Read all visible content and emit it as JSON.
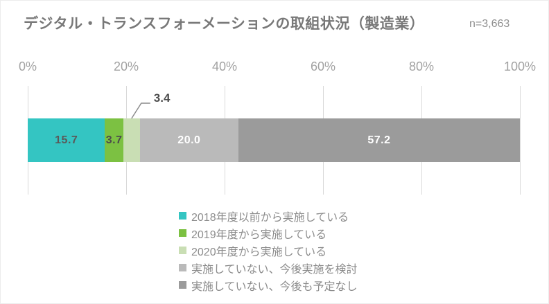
{
  "header": {
    "title": "デジタル・トランスフォーメーションの取組状況（製造業）",
    "sample_size": "n=3,663"
  },
  "axis": {
    "ticks": [
      {
        "label": "0%",
        "value": 0
      },
      {
        "label": "20%",
        "value": 20
      },
      {
        "label": "40%",
        "value": 40
      },
      {
        "label": "60%",
        "value": 60
      },
      {
        "label": "80%",
        "value": 80
      },
      {
        "label": "100%",
        "value": 100
      }
    ]
  },
  "chart_data": {
    "type": "bar",
    "orientation": "horizontal_stacked",
    "title": "デジタル・トランスフォーメーションの取組状況（製造業）",
    "sample_size": "n=3,663",
    "xlim": [
      0,
      100
    ],
    "x_ticks": [
      "0%",
      "20%",
      "40%",
      "60%",
      "80%",
      "100%"
    ],
    "grid": true,
    "legend_position": "bottom",
    "series": [
      {
        "name": "2018年度以前から実施している",
        "value": 15.7,
        "label": "15.7",
        "color": "#34c5c2",
        "label_color": "#5a5a5a",
        "label_position": "inside"
      },
      {
        "name": "2019年度から実施している",
        "value": 3.7,
        "label": "3.7",
        "color": "#7cc142",
        "label_color": "#4c4c4c",
        "label_position": "inside"
      },
      {
        "name": "2020年度から実施している",
        "value": 3.4,
        "label": "3.4",
        "color": "#c9deb4",
        "label_color": "#4c4c4c",
        "label_position": "callout"
      },
      {
        "name": "実施していない、今後実施を検討",
        "value": 20.0,
        "label": "20.0",
        "color": "#bababa",
        "label_color": "#ffffff",
        "label_position": "inside"
      },
      {
        "name": "実施していない、今後も予定なし",
        "value": 57.2,
        "label": "57.2",
        "color": "#9b9b9b",
        "label_color": "#ffffff",
        "label_position": "inside"
      }
    ]
  },
  "colors": {
    "title_text": "#787878",
    "axis_label": "#a2a2a2",
    "gridline": "#d9d9d9",
    "legend_text": "#8c8c8c",
    "leader_line": "#8c8c8c",
    "background": "#ffffff"
  }
}
